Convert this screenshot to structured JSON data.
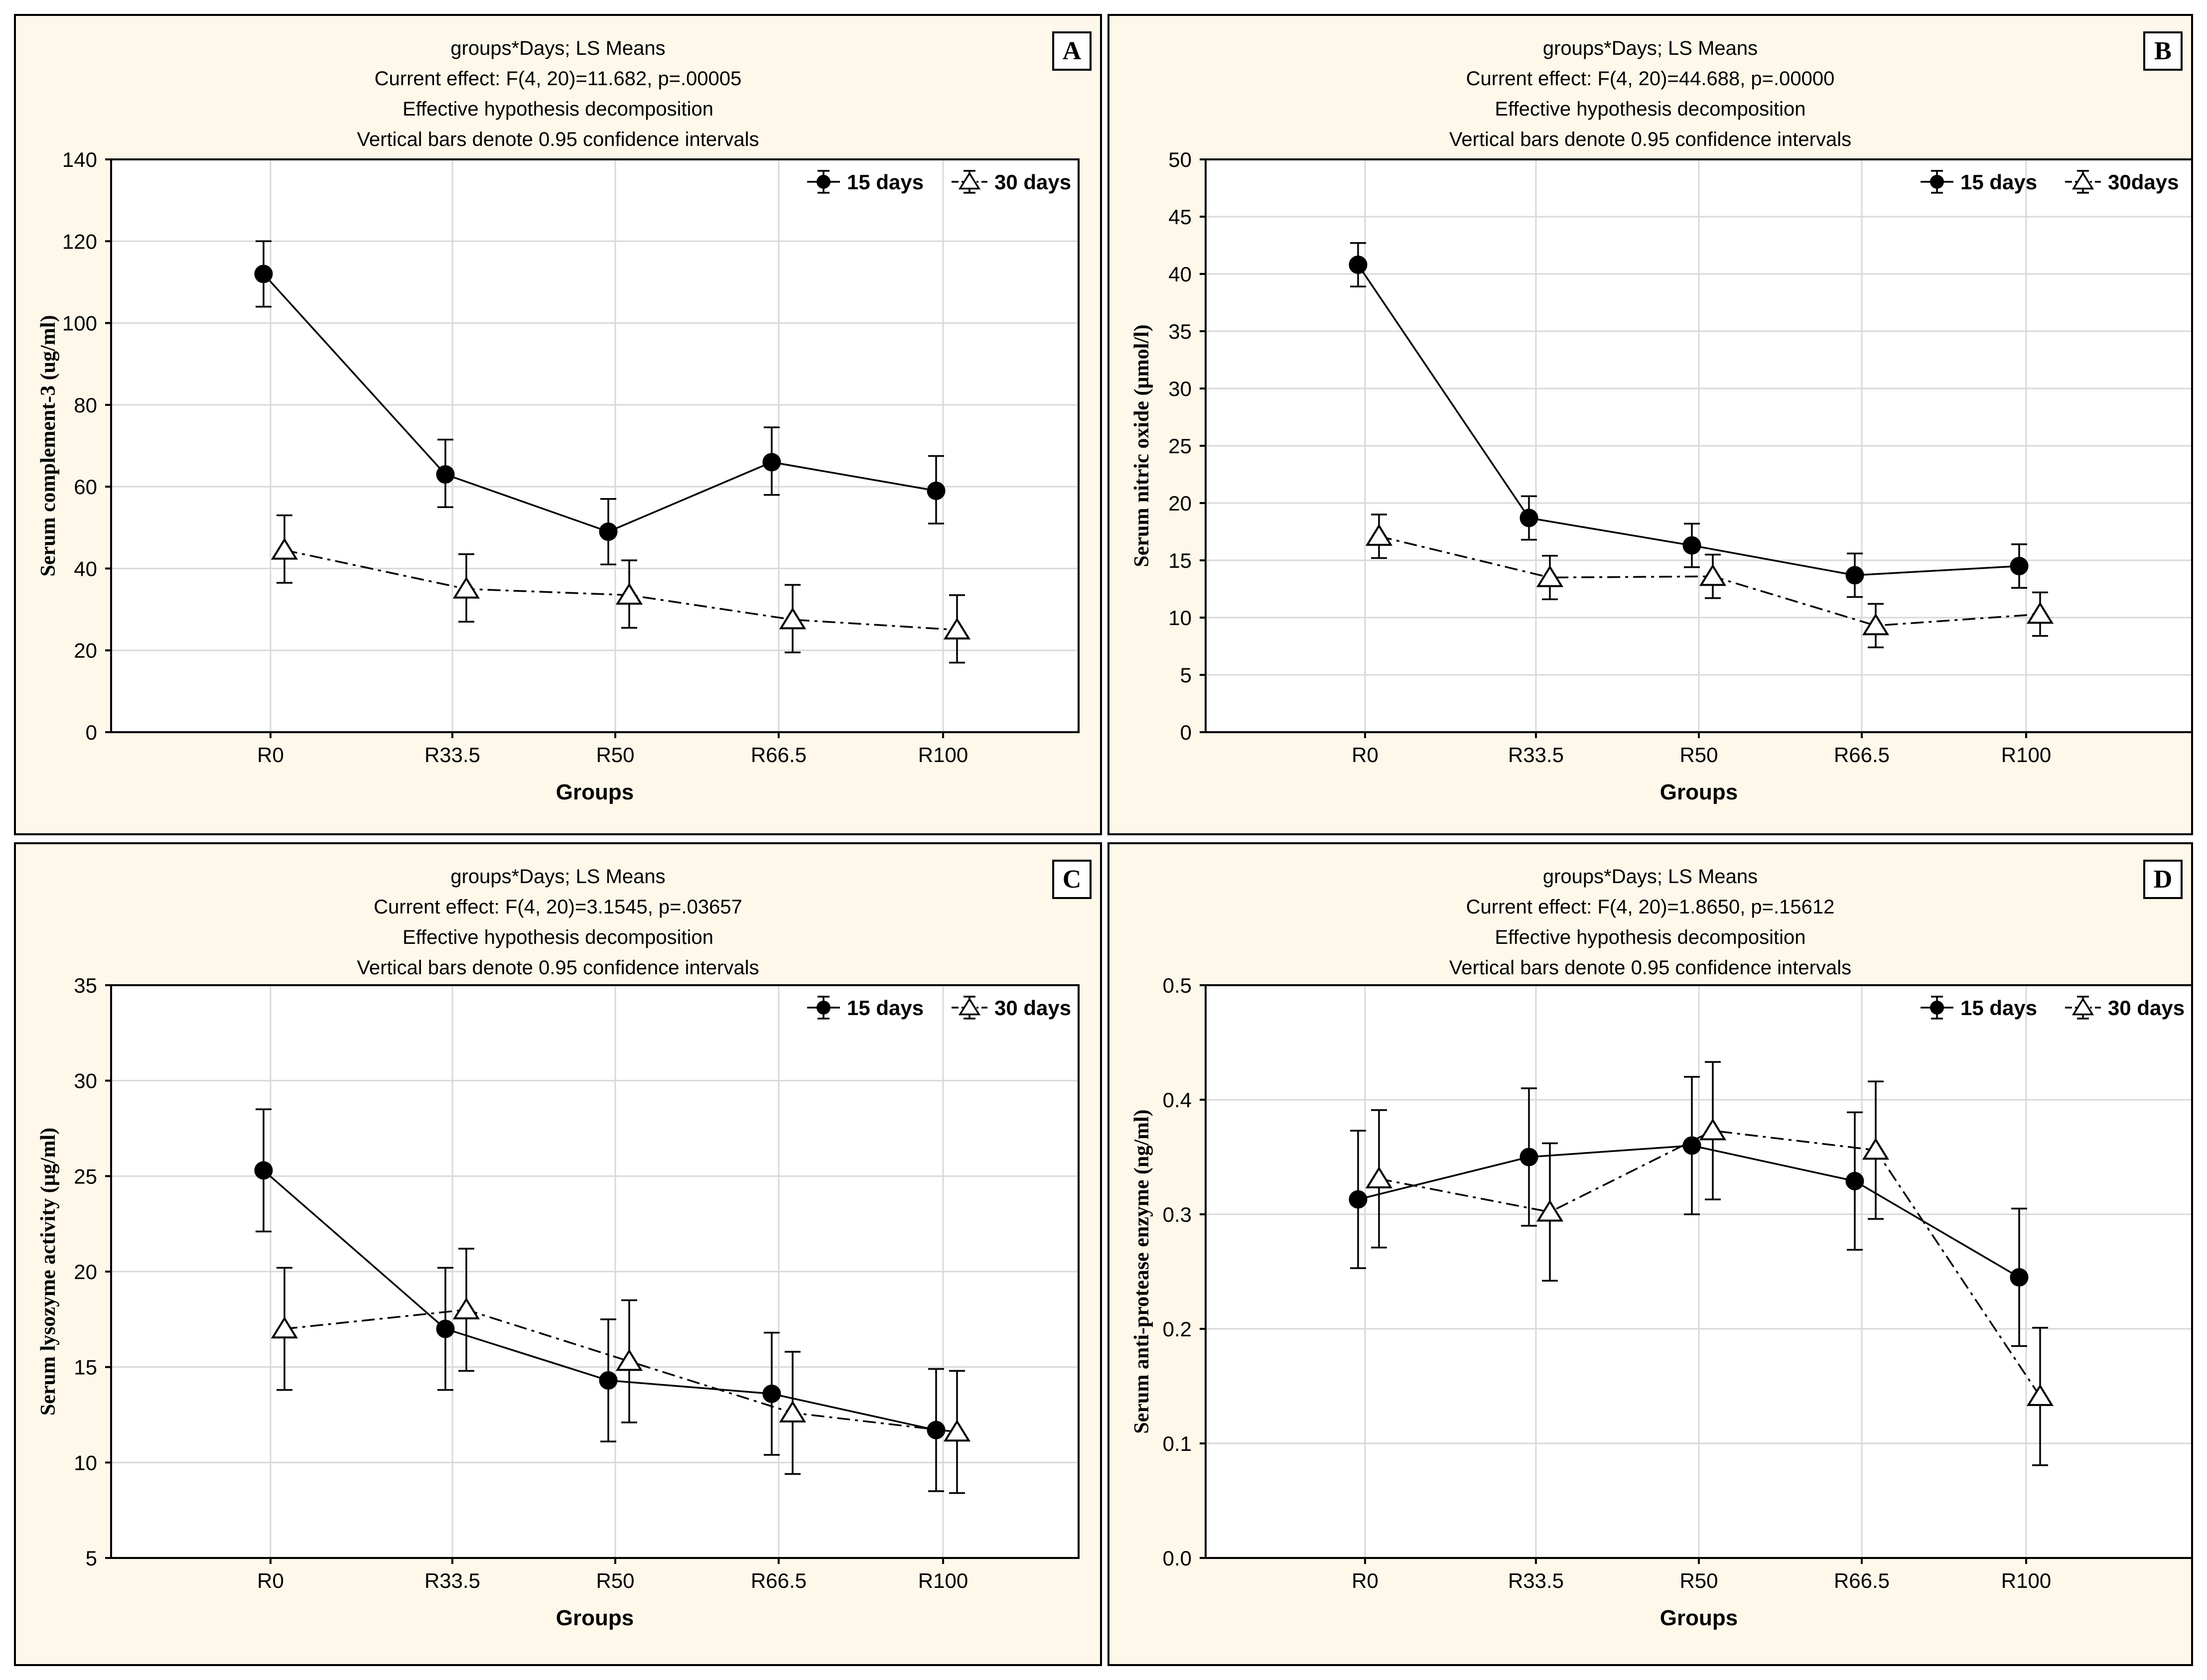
{
  "figure": {
    "line_color": "#000000",
    "panel_background": "#fdf8ea",
    "plot_background": "#ffffff",
    "grid_color": "#d9d9d9"
  },
  "chart_data": [
    {
      "panel": "A",
      "type": "line",
      "title_lines": [
        "groups*Days; LS Means",
        "Current effect: F(4, 20)=11.682, p=.00005",
        "Effective hypothesis decomposition",
        "Vertical bars denote 0.95 confidence intervals"
      ],
      "xlabel": "Groups",
      "ylabel": "Serum complement-3 (ug/ml)",
      "categories": [
        "R0",
        "R33.5",
        "R50",
        "R66.5",
        "R100"
      ],
      "ylim": [
        0,
        140
      ],
      "yticks": [
        0,
        20,
        40,
        60,
        80,
        100,
        120,
        140
      ],
      "tick_decimals": 0,
      "grid": true,
      "legend_position": "top-right",
      "series": [
        {
          "name": "15 days",
          "marker": "filled-circle",
          "dash": "solid",
          "values": [
            112,
            63,
            49,
            66,
            59
          ],
          "ci_low": [
            104,
            55,
            41,
            58,
            51
          ],
          "ci_high": [
            120,
            71.5,
            57,
            74.5,
            67.5
          ]
        },
        {
          "name": "30 days",
          "marker": "open-triangle",
          "dash": "dashdot",
          "values": [
            44.5,
            35,
            33.5,
            27.5,
            25
          ],
          "ci_low": [
            36.5,
            27,
            25.5,
            19.5,
            17
          ],
          "ci_high": [
            53,
            43.5,
            42,
            36,
            33.5
          ]
        }
      ]
    },
    {
      "panel": "B",
      "type": "line",
      "title_lines": [
        "groups*Days; LS Means",
        "Current effect: F(4, 20)=44.688, p=.00000",
        "Effective hypothesis decomposition",
        "Vertical bars denote 0.95 confidence intervals"
      ],
      "xlabel": "Groups",
      "ylabel": "Serum nitric oxide (µmol/l)",
      "categories": [
        "R0",
        "R33.5",
        "R50",
        "R66.5",
        "R100"
      ],
      "ylim": [
        0,
        50
      ],
      "yticks": [
        0,
        5,
        10,
        15,
        20,
        25,
        30,
        35,
        40,
        45,
        50
      ],
      "tick_decimals": 0,
      "grid": true,
      "legend_position": "top-right",
      "series": [
        {
          "name": "15 days",
          "marker": "filled-circle",
          "dash": "solid",
          "values": [
            40.8,
            18.7,
            16.3,
            13.7,
            14.5
          ],
          "ci_low": [
            38.9,
            16.8,
            14.4,
            11.8,
            12.6
          ],
          "ci_high": [
            42.7,
            20.6,
            18.2,
            15.6,
            16.4
          ]
        },
        {
          "name": "30days",
          "marker": "open-triangle",
          "dash": "dashdot",
          "values": [
            17.1,
            13.5,
            13.6,
            9.3,
            10.3
          ],
          "ci_low": [
            15.2,
            11.6,
            11.7,
            7.4,
            8.4
          ],
          "ci_high": [
            19.0,
            15.4,
            15.5,
            11.2,
            12.2
          ]
        }
      ]
    },
    {
      "panel": "C",
      "type": "line",
      "title_lines": [
        "groups*Days; LS Means",
        "Current effect: F(4, 20)=3.1545, p=.03657",
        "Effective hypothesis decomposition",
        "Vertical bars denote 0.95 confidence intervals"
      ],
      "xlabel": "Groups",
      "ylabel": "Serum lysozyme activity (µg/ml)",
      "categories": [
        "R0",
        "R33.5",
        "R50",
        "R66.5",
        "R100"
      ],
      "ylim": [
        5,
        35
      ],
      "yticks": [
        5,
        10,
        15,
        20,
        25,
        30,
        35
      ],
      "tick_decimals": 0,
      "grid": true,
      "legend_position": "top-right",
      "series": [
        {
          "name": "15 days",
          "marker": "filled-circle",
          "dash": "solid",
          "values": [
            25.3,
            17.0,
            14.3,
            13.6,
            11.7
          ],
          "ci_low": [
            22.1,
            13.8,
            11.1,
            10.4,
            8.5
          ],
          "ci_high": [
            28.5,
            20.2,
            17.5,
            16.8,
            14.9
          ]
        },
        {
          "name": "30 days",
          "marker": "open-triangle",
          "dash": "dashdot",
          "values": [
            17.0,
            18.0,
            15.3,
            12.6,
            11.6
          ],
          "ci_low": [
            13.8,
            14.8,
            12.1,
            9.4,
            8.4
          ],
          "ci_high": [
            20.2,
            21.2,
            18.5,
            15.8,
            14.8
          ]
        }
      ]
    },
    {
      "panel": "D",
      "type": "line",
      "title_lines": [
        "groups*Days; LS Means",
        "Current effect: F(4, 20)=1.8650, p=.15612",
        "Effective hypothesis decomposition",
        "Vertical bars denote 0.95 confidence intervals"
      ],
      "xlabel": "Groups",
      "ylabel": "Serum anti-protease enzyme (ng/ml)",
      "categories": [
        "R0",
        "R33.5",
        "R50",
        "R66.5",
        "R100"
      ],
      "ylim": [
        0,
        0.5
      ],
      "yticks": [
        0,
        0.1,
        0.2,
        0.3,
        0.4,
        0.5
      ],
      "tick_decimals": 1,
      "grid": true,
      "legend_position": "top-right",
      "series": [
        {
          "name": "15 days",
          "marker": "filled-circle",
          "dash": "solid",
          "values": [
            0.313,
            0.35,
            0.36,
            0.329,
            0.245
          ],
          "ci_low": [
            0.253,
            0.29,
            0.3,
            0.269,
            0.185
          ],
          "ci_high": [
            0.373,
            0.41,
            0.42,
            0.389,
            0.305
          ]
        },
        {
          "name": "30 days",
          "marker": "open-triangle",
          "dash": "dashdot",
          "values": [
            0.331,
            0.302,
            0.373,
            0.356,
            0.141
          ],
          "ci_low": [
            0.271,
            0.242,
            0.313,
            0.296,
            0.081
          ],
          "ci_high": [
            0.391,
            0.362,
            0.433,
            0.416,
            0.201
          ]
        }
      ]
    }
  ]
}
